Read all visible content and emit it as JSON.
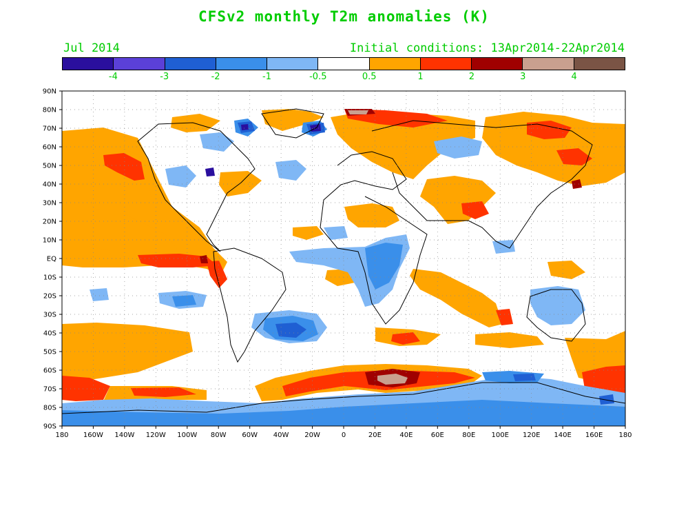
{
  "header": {
    "title": "CFSv2 monthly T2m anomalies (K)",
    "month": "Jul 2014",
    "initial_conditions": "Initial conditions: 13Apr2014-22Apr2014"
  },
  "colorbar": {
    "colors": [
      "#2a0f9e",
      "#5b40d8",
      "#1f5fd3",
      "#3a8fea",
      "#7fb7f5",
      "#ffffff",
      "#ffa500",
      "#ff3300",
      "#a00000",
      "#c9a08f",
      "#7a5445"
    ],
    "labels": [
      "-4",
      "-3",
      "-2",
      "-1",
      "-0.5",
      "0.5",
      "1",
      "2",
      "3",
      "4"
    ]
  },
  "axes": {
    "lat_labels": [
      "90N",
      "80N",
      "70N",
      "60N",
      "50N",
      "40N",
      "30N",
      "20N",
      "10N",
      "EQ",
      "10S",
      "20S",
      "30S",
      "40S",
      "50S",
      "60S",
      "70S",
      "80S",
      "90S"
    ],
    "lon_labels": [
      "180",
      "160W",
      "140W",
      "120W",
      "100W",
      "80W",
      "60W",
      "40W",
      "20W",
      "0",
      "20E",
      "40E",
      "60E",
      "80E",
      "100E",
      "120E",
      "140E",
      "160E",
      "180"
    ]
  }
}
